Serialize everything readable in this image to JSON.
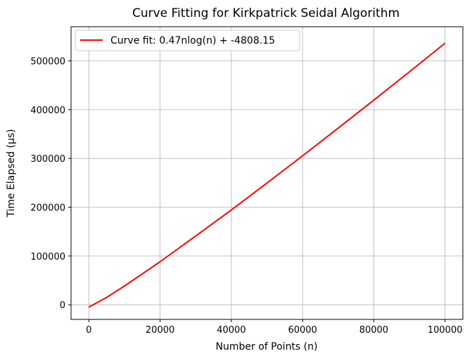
{
  "chart_data": {
    "type": "line",
    "title": "Curve Fitting for Kirkpatrick Seidal Algorithm",
    "xlabel": "Number of Points (n)",
    "ylabel": "Time Elapsed (µs)",
    "xlim": [
      -5000,
      105000
    ],
    "ylim": [
      -30000,
      570000
    ],
    "xticks": [
      0,
      20000,
      40000,
      60000,
      80000,
      100000
    ],
    "yticks": [
      0,
      100000,
      200000,
      300000,
      400000,
      500000
    ],
    "grid": true,
    "legend_position": "upper left",
    "series": [
      {
        "name": "Curve fit: 0.47nlog(n) + -4808.15",
        "color": "#ff0000",
        "fit": {
          "form": "a*n*log(n) + b",
          "a": 0.47,
          "b": -4808.15
        },
        "x": [
          0,
          5000,
          10000,
          20000,
          30000,
          40000,
          50000,
          60000,
          70000,
          80000,
          90000,
          100000
        ],
        "y": [
          -4808,
          15200,
          38500,
          88300,
          141100,
          194400,
          249500,
          305400,
          362200,
          419600,
          477600,
          536300
        ]
      }
    ]
  }
}
